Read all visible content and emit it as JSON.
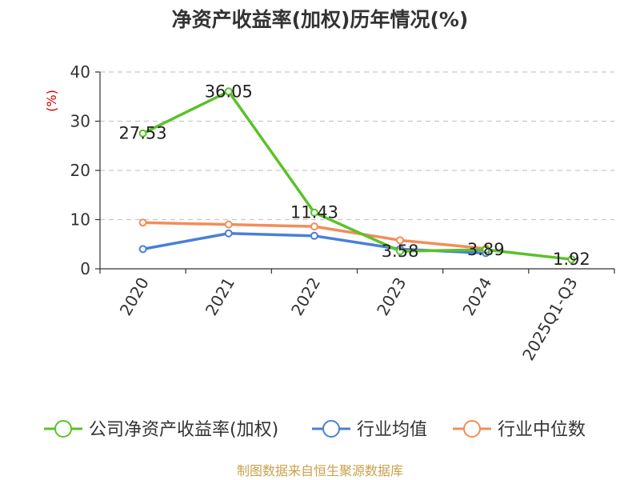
{
  "chart_data": {
    "type": "line",
    "title": "净资产收益率(加权)历年情况(%)",
    "ylabel": "(%)",
    "xlabel": "",
    "categories": [
      "2020",
      "2021",
      "2022",
      "2023",
      "2024",
      "2025Q1-Q3"
    ],
    "ylim": [
      0,
      40
    ],
    "yticks": [
      0,
      10,
      20,
      30,
      40
    ],
    "grid": true,
    "legend_position": "bottom",
    "series": [
      {
        "name": "公司净资产收益率(加权)",
        "color": "#5ac228",
        "values": [
          27.53,
          36.05,
          11.43,
          3.58,
          3.89,
          1.92
        ],
        "labels": [
          "27.53",
          "36.05",
          "11.43",
          "3.58",
          "3.89",
          "1.92"
        ]
      },
      {
        "name": "行业均值",
        "color": "#4a7fd9",
        "values": [
          4.0,
          7.2,
          6.7,
          4.0,
          3.2,
          null
        ]
      },
      {
        "name": "行业中位数",
        "color": "#f28d5a",
        "values": [
          9.4,
          9.0,
          8.6,
          5.8,
          4.1,
          null
        ]
      }
    ],
    "source": "制图数据来自恒生聚源数据库"
  }
}
